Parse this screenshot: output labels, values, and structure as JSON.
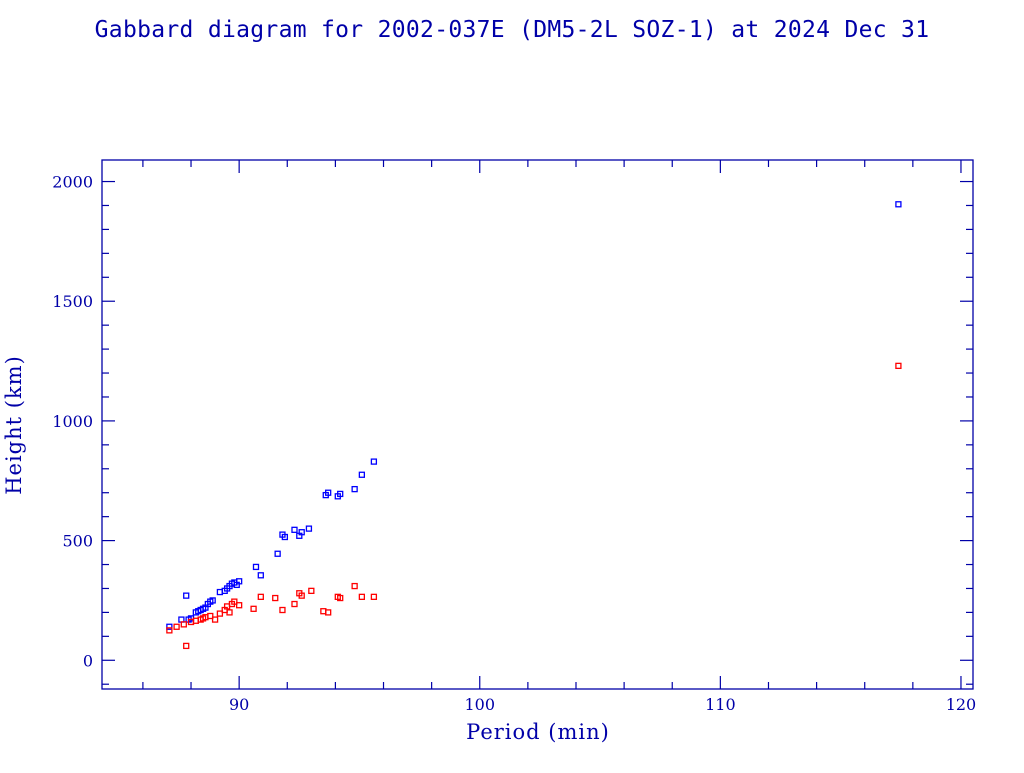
{
  "chart_data": {
    "type": "scatter",
    "title": "Gabbard diagram for 2002-037E (DM5-2L SOZ-1) at 2024 Dec 31",
    "xlabel": "Period (min)",
    "ylabel": "Height (km)",
    "xlim": [
      84.3,
      120.5
    ],
    "ylim": [
      -120,
      2090
    ],
    "x_ticks": [
      90,
      100,
      110,
      120
    ],
    "y_ticks": [
      0,
      500,
      1000,
      1500,
      2000
    ],
    "x_minor_step": 2,
    "y_minor_step": 100,
    "grid": false,
    "legend": "none",
    "series": [
      {
        "color": "#0000ff",
        "points": [
          [
            87.1,
            140
          ],
          [
            87.6,
            170
          ],
          [
            87.8,
            270
          ],
          [
            87.9,
            170
          ],
          [
            88.0,
            175
          ],
          [
            88.2,
            200
          ],
          [
            88.3,
            205
          ],
          [
            88.4,
            210
          ],
          [
            88.5,
            215
          ],
          [
            88.6,
            220
          ],
          [
            88.7,
            235
          ],
          [
            88.8,
            245
          ],
          [
            88.9,
            250
          ],
          [
            89.2,
            285
          ],
          [
            89.4,
            290
          ],
          [
            89.5,
            300
          ],
          [
            89.6,
            310
          ],
          [
            89.7,
            320
          ],
          [
            89.8,
            325
          ],
          [
            89.9,
            315
          ],
          [
            90.0,
            330
          ],
          [
            90.7,
            390
          ],
          [
            90.9,
            355
          ],
          [
            91.6,
            445
          ],
          [
            91.8,
            525
          ],
          [
            91.9,
            515
          ],
          [
            92.3,
            545
          ],
          [
            92.5,
            520
          ],
          [
            92.6,
            535
          ],
          [
            92.9,
            550
          ],
          [
            93.6,
            690
          ],
          [
            93.7,
            700
          ],
          [
            94.1,
            685
          ],
          [
            94.2,
            695
          ],
          [
            94.8,
            715
          ],
          [
            95.1,
            775
          ],
          [
            95.6,
            830
          ],
          [
            117.4,
            1905
          ]
        ]
      },
      {
        "color": "#ff0000",
        "points": [
          [
            87.1,
            125
          ],
          [
            87.4,
            140
          ],
          [
            87.7,
            150
          ],
          [
            87.8,
            60
          ],
          [
            88.0,
            160
          ],
          [
            88.2,
            165
          ],
          [
            88.4,
            170
          ],
          [
            88.5,
            175
          ],
          [
            88.6,
            180
          ],
          [
            88.8,
            185
          ],
          [
            89.0,
            170
          ],
          [
            89.2,
            195
          ],
          [
            89.4,
            210
          ],
          [
            89.5,
            225
          ],
          [
            89.6,
            200
          ],
          [
            89.7,
            235
          ],
          [
            89.8,
            245
          ],
          [
            90.0,
            230
          ],
          [
            90.6,
            215
          ],
          [
            90.9,
            265
          ],
          [
            91.5,
            260
          ],
          [
            91.8,
            210
          ],
          [
            92.3,
            235
          ],
          [
            92.5,
            280
          ],
          [
            92.6,
            270
          ],
          [
            93.0,
            290
          ],
          [
            93.5,
            205
          ],
          [
            93.7,
            200
          ],
          [
            94.1,
            265
          ],
          [
            94.2,
            260
          ],
          [
            94.8,
            310
          ],
          [
            95.1,
            265
          ],
          [
            95.6,
            265
          ],
          [
            117.4,
            1230
          ]
        ]
      }
    ]
  }
}
